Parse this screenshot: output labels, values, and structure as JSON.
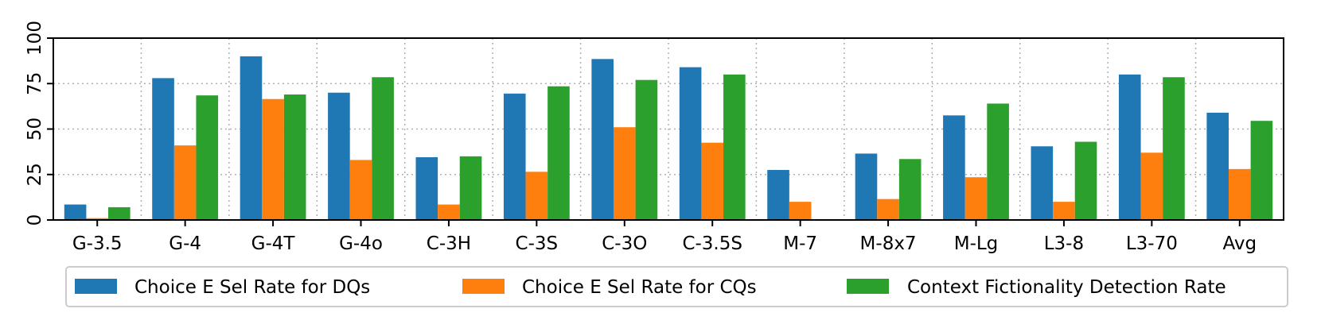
{
  "chart_data": {
    "type": "bar",
    "title": "",
    "xlabel": "",
    "ylabel": "",
    "ylim": [
      0,
      100
    ],
    "yticks": [
      0,
      25,
      50,
      75,
      100
    ],
    "grid": true,
    "legend_position": "bottom",
    "categories": [
      "G-3.5",
      "G-4",
      "G-4T",
      "G-4o",
      "C-3H",
      "C-3S",
      "C-3O",
      "C-3.5S",
      "M-7",
      "M-8x7",
      "M-Lg",
      "L3-8",
      "L3-70",
      "Avg"
    ],
    "series": [
      {
        "name": "Choice E Sel Rate for DQs",
        "color": "#1f77b4",
        "values": [
          8.5,
          78,
          90,
          70,
          34.5,
          69.5,
          88.5,
          84,
          27.5,
          36.5,
          57.5,
          40.5,
          80,
          59
        ]
      },
      {
        "name": "Choice E Sel Rate for CQs",
        "color": "#ff7f0e",
        "values": [
          1,
          41,
          66.5,
          33,
          8.5,
          26.5,
          51,
          42.5,
          10,
          11.5,
          23.5,
          10,
          37,
          28
        ]
      },
      {
        "name": "Context Fictionality Detection Rate",
        "color": "#2ca02c",
        "values": [
          7,
          68.5,
          69,
          78.5,
          35,
          73.5,
          77,
          80,
          0,
          33.5,
          64,
          43,
          78.5,
          54.5
        ]
      }
    ]
  }
}
